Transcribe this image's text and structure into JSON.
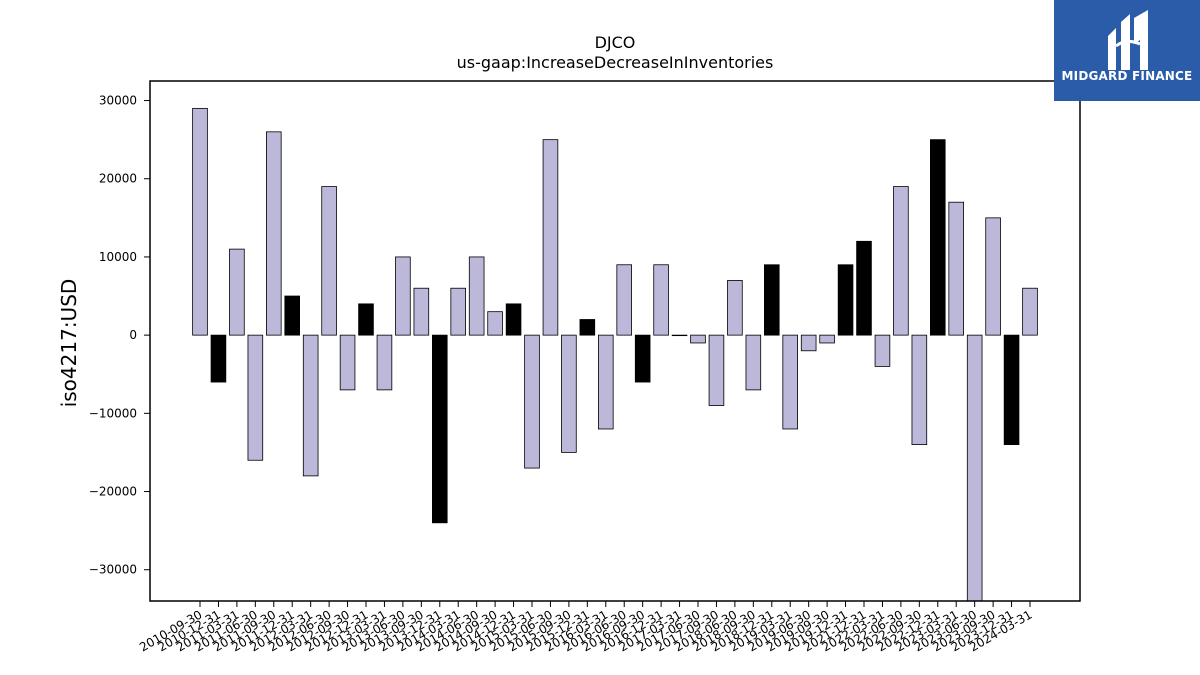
{
  "brand": {
    "name": "MIDGARD FINANCE",
    "bg_color": "#2a5caa",
    "icon": "midgard-logo-icon"
  },
  "chart_data": {
    "type": "bar",
    "title": "DJCO",
    "subtitle": "us-gaap:IncreaseDecreaseInInventories",
    "ylabel": "iso4217:USD",
    "xlabel": "",
    "ylim": [
      -34000,
      32500
    ],
    "yticks": [
      30000,
      20000,
      10000,
      0,
      -10000,
      -20000,
      -30000
    ],
    "ytick_labels": [
      "30000",
      "20000",
      "10000",
      "0",
      "−10000",
      "−20000",
      "−30000"
    ],
    "grid": false,
    "colors": {
      "annual": "#000000",
      "quarterly": "#bcb8da",
      "edge": "#000000"
    },
    "categories": [
      "2010-09-30",
      "2010-12-31",
      "2011-03-31",
      "2011-06-30",
      "2011-09-30",
      "2011-12-31",
      "2012-03-31",
      "2012-06-30",
      "2012-09-30",
      "2012-12-31",
      "2013-03-31",
      "2013-06-30",
      "2013-09-30",
      "2013-12-31",
      "2014-03-31",
      "2014-06-30",
      "2014-09-30",
      "2014-12-31",
      "2015-03-31",
      "2015-06-30",
      "2015-09-30",
      "2015-12-31",
      "2016-03-31",
      "2016-06-30",
      "2016-09-30",
      "2016-12-31",
      "2017-03-31",
      "2017-06-30",
      "2017-09-30",
      "2018-06-30",
      "2018-09-30",
      "2018-12-31",
      "2019-03-31",
      "2019-06-30",
      "2019-09-30",
      "2019-12-31",
      "2021-12-31",
      "2022-03-31",
      "2022-06-30",
      "2022-09-30",
      "2022-12-31",
      "2023-03-31",
      "2023-06-30",
      "2023-09-30",
      "2023-12-31",
      "2024-03-31"
    ],
    "values": [
      29000,
      -6000,
      11000,
      -16000,
      26000,
      5000,
      -18000,
      19000,
      -7000,
      4000,
      -7000,
      10000,
      6000,
      -24000,
      6000,
      10000,
      3000,
      4000,
      -17000,
      25000,
      -15000,
      2000,
      -12000,
      9000,
      -6000,
      9000,
      0,
      -1000,
      -9000,
      7000,
      -7000,
      9000,
      -12000,
      -2000,
      -1000,
      9000,
      12000,
      -4000,
      19000,
      -14000,
      25000,
      17000,
      -34000,
      15000,
      -14000,
      6000
    ],
    "highlight": [
      false,
      true,
      false,
      false,
      false,
      true,
      false,
      false,
      false,
      true,
      false,
      false,
      false,
      true,
      false,
      false,
      false,
      true,
      false,
      false,
      false,
      true,
      false,
      false,
      true,
      false,
      false,
      false,
      false,
      false,
      false,
      true,
      false,
      false,
      false,
      true,
      true,
      false,
      false,
      false,
      true,
      false,
      false,
      false,
      true,
      false
    ]
  }
}
